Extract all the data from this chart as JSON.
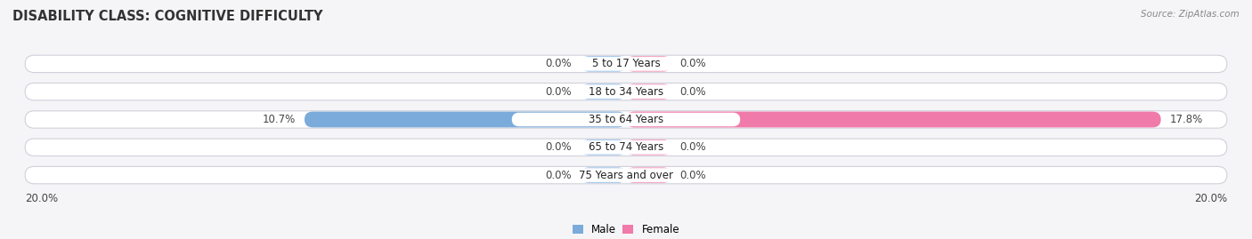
{
  "title": "DISABILITY CLASS: COGNITIVE DIFFICULTY",
  "source_text": "Source: ZipAtlas.com",
  "categories": [
    "5 to 17 Years",
    "18 to 34 Years",
    "35 to 64 Years",
    "65 to 74 Years",
    "75 Years and over"
  ],
  "male_values": [
    0.0,
    0.0,
    10.7,
    0.0,
    0.0
  ],
  "female_values": [
    0.0,
    0.0,
    17.8,
    0.0,
    0.0
  ],
  "x_max": 20.0,
  "male_color": "#7aabda",
  "female_color": "#f07aaa",
  "male_stub_color": "#aaccee",
  "female_stub_color": "#f5aac8",
  "male_label": "Male",
  "female_label": "Female",
  "row_bg_color": "#e8e8f0",
  "row_bg_color2": "#ebebf2",
  "center_label_bg": "#ffffff",
  "bar_height": 0.62,
  "stub_size": 1.5,
  "axis_label_left": "20.0%",
  "axis_label_right": "20.0%",
  "title_fontsize": 10.5,
  "label_fontsize": 8.5,
  "category_fontsize": 8.5,
  "value_fontsize": 8.5,
  "background_color": "#f5f5f8",
  "row_colors": [
    "#eaeaef",
    "#eaeaef",
    "#eaeaef",
    "#eaeaef",
    "#eaeaef"
  ]
}
